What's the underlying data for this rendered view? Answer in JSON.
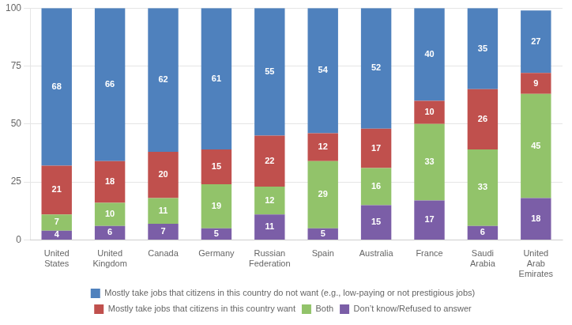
{
  "chart_data": {
    "type": "bar",
    "stacked": true,
    "categories": [
      "United\nStates",
      "United\nKingdom",
      "Canada",
      "Germany",
      "Russian\nFederation",
      "Spain",
      "Australia",
      "France",
      "Saudi\nArabia",
      "United\nArab\nEmirates"
    ],
    "series": [
      {
        "name": "Don’t know/Refused to answer",
        "color": "#7B5EA7",
        "values": [
          4,
          6,
          7,
          5,
          11,
          5,
          15,
          17,
          6,
          18
        ]
      },
      {
        "name": "Both",
        "color": "#92C36A",
        "values": [
          7,
          10,
          11,
          19,
          12,
          29,
          16,
          33,
          33,
          45
        ]
      },
      {
        "name": "Mostly take jobs that citizens in this country want",
        "color": "#C0504D",
        "values": [
          21,
          18,
          20,
          15,
          22,
          12,
          17,
          10,
          26,
          9
        ]
      },
      {
        "name": "Mostly take jobs that citizens in this country do not want (e.g., low-paying or not prestigious jobs)",
        "color": "#4F81BD",
        "values": [
          68,
          66,
          62,
          61,
          55,
          54,
          52,
          40,
          35,
          27
        ]
      }
    ],
    "ylim": [
      0,
      100
    ],
    "yticks": [
      0,
      25,
      50,
      75,
      100
    ],
    "grid": true,
    "data_labels": true,
    "legend": "bottom"
  }
}
